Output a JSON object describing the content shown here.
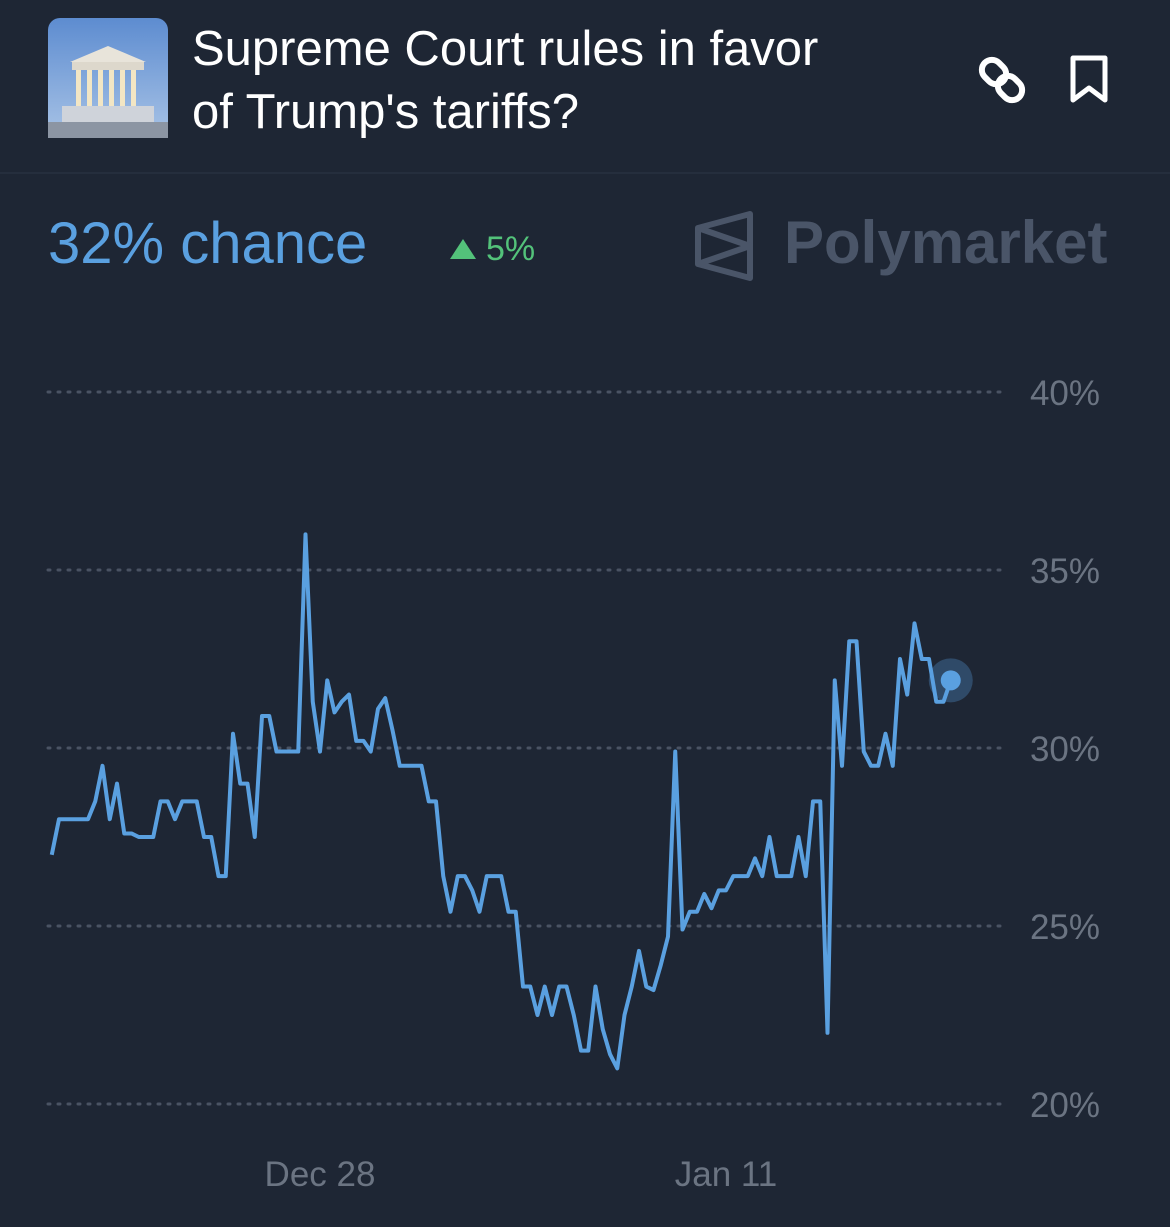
{
  "header": {
    "title": "Supreme Court rules in favor of Trump's tariffs?",
    "chance": "32% chance",
    "change": "5%",
    "brand": "Polymarket"
  },
  "chart_data": {
    "type": "line",
    "color": "#5aa0e0",
    "categories": [
      null,
      null,
      null,
      null,
      null,
      null,
      null,
      null,
      null,
      null,
      null,
      null,
      null,
      null,
      null,
      null,
      null,
      null,
      null,
      null,
      null,
      null,
      null,
      null,
      null,
      null,
      null,
      null,
      null,
      null,
      null,
      null,
      null,
      null,
      null,
      null,
      null,
      "Dec 28",
      null,
      null,
      null,
      null,
      null,
      null,
      null,
      null,
      null,
      null,
      null,
      null,
      null,
      null,
      null,
      null,
      null,
      null,
      null,
      null,
      null,
      null,
      null,
      null,
      null,
      null,
      null,
      null,
      null,
      null,
      null,
      null,
      null,
      null,
      null,
      null,
      null,
      null,
      null,
      null,
      null,
      null,
      null,
      null,
      null,
      null,
      null,
      null,
      null,
      null,
      null,
      null,
      null,
      null,
      null,
      "Jan 11",
      null,
      null,
      null,
      null,
      null,
      null,
      null,
      null,
      null,
      null,
      null,
      null,
      null,
      null,
      null,
      null,
      null,
      null,
      null,
      null,
      null,
      null,
      null,
      null,
      null,
      null,
      null,
      null,
      null,
      null,
      null
    ],
    "values": [
      27.0,
      28.0,
      28.0,
      28.0,
      28.0,
      28.0,
      28.5,
      29.5,
      28.0,
      29.0,
      27.6,
      27.6,
      27.5,
      27.5,
      27.5,
      28.5,
      28.5,
      28.0,
      28.5,
      28.5,
      28.5,
      27.5,
      27.5,
      26.4,
      26.4,
      30.4,
      29.0,
      29.0,
      27.5,
      30.9,
      30.9,
      29.9,
      29.9,
      29.9,
      29.9,
      36.0,
      31.3,
      29.9,
      31.9,
      31.0,
      31.3,
      31.5,
      30.2,
      30.2,
      29.9,
      31.1,
      31.4,
      30.5,
      29.5,
      29.5,
      29.5,
      29.5,
      28.5,
      28.5,
      26.4,
      25.4,
      26.4,
      26.4,
      26.0,
      25.4,
      26.4,
      26.4,
      26.4,
      25.4,
      25.4,
      23.3,
      23.3,
      22.5,
      23.3,
      22.5,
      23.3,
      23.3,
      22.5,
      21.5,
      21.5,
      23.3,
      22.1,
      21.4,
      21.0,
      22.5,
      23.3,
      24.3,
      23.3,
      23.2,
      23.9,
      24.7,
      29.9,
      24.9,
      25.4,
      25.4,
      25.9,
      25.5,
      26.0,
      26.0,
      26.4,
      26.4,
      26.4,
      26.9,
      26.4,
      27.5,
      26.4,
      26.4,
      26.4,
      27.5,
      26.4,
      28.5,
      28.5,
      22.0,
      31.9,
      29.5,
      33.0,
      33.0,
      29.9,
      29.5,
      29.5,
      30.4,
      29.5,
      32.5,
      31.5,
      33.5,
      32.5,
      32.5,
      31.3,
      31.3,
      31.9
    ],
    "ylim": [
      19.5,
      40.5
    ],
    "yticks": [
      {
        "value": 20,
        "label": "20%"
      },
      {
        "value": 25,
        "label": "25%"
      },
      {
        "value": 30,
        "label": "30%"
      },
      {
        "value": 35,
        "label": "35%"
      },
      {
        "value": 40,
        "label": "40%"
      }
    ],
    "grid": true
  }
}
